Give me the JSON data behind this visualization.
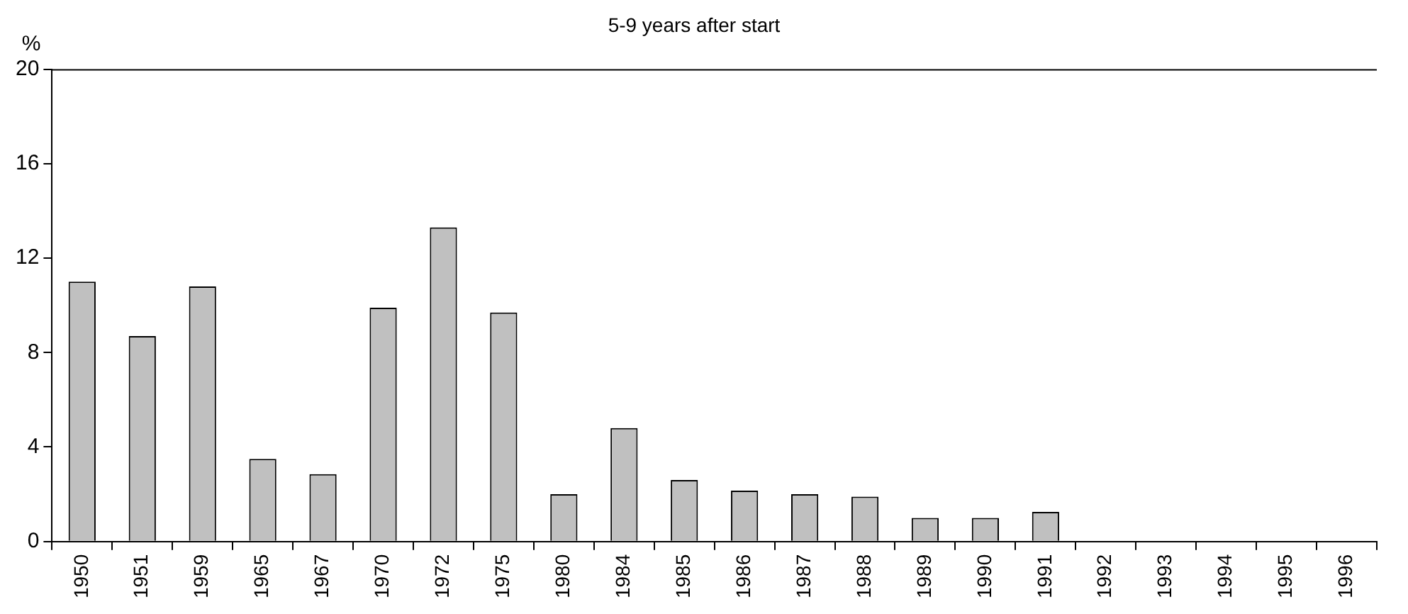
{
  "chart_data": {
    "type": "bar",
    "title": "5-9 years after start",
    "ylabel": "%",
    "categories": [
      "1950",
      "1951",
      "1959",
      "1965",
      "1967",
      "1970",
      "1972",
      "1975",
      "1980",
      "1984",
      "1985",
      "1986",
      "1987",
      "1988",
      "1989",
      "1990",
      "1991",
      "1992",
      "1993",
      "1994",
      "1995",
      "1996"
    ],
    "values": [
      11.0,
      8.7,
      10.8,
      3.5,
      2.85,
      9.9,
      13.3,
      9.7,
      2.0,
      4.8,
      2.6,
      2.15,
      2.0,
      1.9,
      1.0,
      1.0,
      1.25,
      0,
      0,
      0,
      0,
      0
    ],
    "color": "#c0c0c0",
    "ylim": [
      0,
      20
    ],
    "yticks": [
      0,
      4,
      8,
      12,
      16,
      20
    ],
    "grid": false,
    "legend": false
  }
}
